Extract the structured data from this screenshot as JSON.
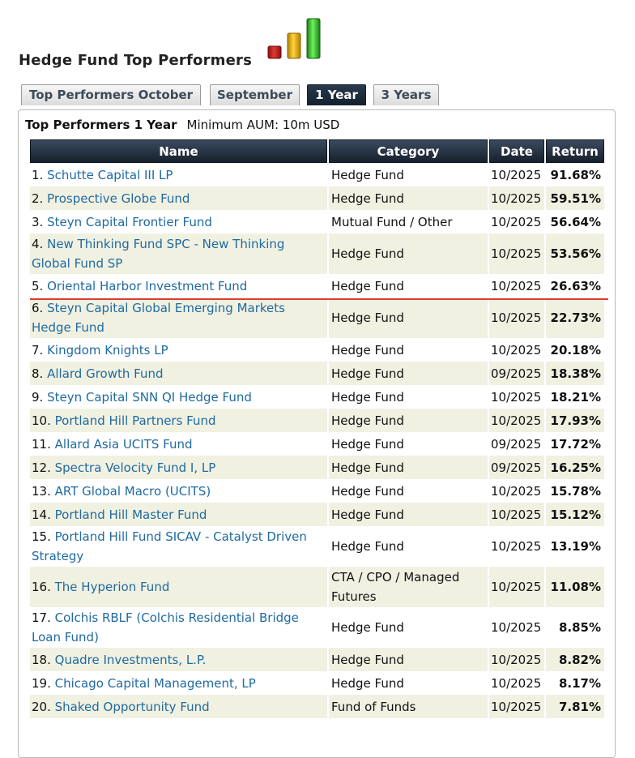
{
  "title": "Hedge Fund Top Performers",
  "tabs": [
    {
      "label": "Top Performers October",
      "active": false
    },
    {
      "label": "September",
      "active": false
    },
    {
      "label": "1 Year",
      "active": true
    },
    {
      "label": "3 Years",
      "active": false
    }
  ],
  "caption": {
    "heading": "Top Performers 1 Year",
    "aum": "Minimum AUM: 10m USD"
  },
  "table": {
    "headers": {
      "name": "Name",
      "category": "Category",
      "date": "Date",
      "return": "Return"
    },
    "rows": [
      {
        "rank": "1.",
        "name": "Schutte Capital III LP",
        "category": "Hedge Fund",
        "date": "10/2025",
        "ret": "91.68%"
      },
      {
        "rank": "2.",
        "name": "Prospective Globe Fund",
        "category": "Hedge Fund",
        "date": "10/2025",
        "ret": "59.51%"
      },
      {
        "rank": "3.",
        "name": "Steyn Capital Frontier Fund",
        "category": "Mutual Fund / Other",
        "date": "10/2025",
        "ret": "56.64%"
      },
      {
        "rank": "4.",
        "name": "New Thinking Fund SPC - New Thinking Global Fund SP",
        "category": "Hedge Fund",
        "date": "10/2025",
        "ret": "53.56%"
      },
      {
        "rank": "5.",
        "name": "Oriental Harbor Investment Fund",
        "category": "Hedge Fund",
        "date": "10/2025",
        "ret": "26.63%"
      },
      {
        "rank": "6.",
        "name": "Steyn Capital Global Emerging Markets Hedge Fund",
        "category": "Hedge Fund",
        "date": "10/2025",
        "ret": "22.73%"
      },
      {
        "rank": "7.",
        "name": "Kingdom Knights LP",
        "category": "Hedge Fund",
        "date": "10/2025",
        "ret": "20.18%"
      },
      {
        "rank": "8.",
        "name": "Allard Growth Fund",
        "category": "Hedge Fund",
        "date": "09/2025",
        "ret": "18.38%"
      },
      {
        "rank": "9.",
        "name": "Steyn Capital SNN QI Hedge Fund",
        "category": "Hedge Fund",
        "date": "10/2025",
        "ret": "18.21%"
      },
      {
        "rank": "10.",
        "name": "Portland Hill Partners Fund",
        "category": "Hedge Fund",
        "date": "10/2025",
        "ret": "17.93%"
      },
      {
        "rank": "11.",
        "name": "Allard Asia UCITS Fund",
        "category": "Hedge Fund",
        "date": "09/2025",
        "ret": "17.72%"
      },
      {
        "rank": "12.",
        "name": "Spectra Velocity Fund I, LP",
        "category": "Hedge Fund",
        "date": "09/2025",
        "ret": "16.25%"
      },
      {
        "rank": "13.",
        "name": "ART Global Macro (UCITS)",
        "category": "Hedge Fund",
        "date": "10/2025",
        "ret": "15.78%"
      },
      {
        "rank": "14.",
        "name": "Portland Hill Master Fund",
        "category": "Hedge Fund",
        "date": "10/2025",
        "ret": "15.12%"
      },
      {
        "rank": "15.",
        "name": "Portland Hill Fund SICAV - Catalyst Driven Strategy",
        "category": "Hedge Fund",
        "date": "10/2025",
        "ret": "13.19%"
      },
      {
        "rank": "16.",
        "name": "The Hyperion Fund",
        "category": "CTA / CPO / Managed Futures",
        "date": "10/2025",
        "ret": "11.08%"
      },
      {
        "rank": "17.",
        "name": "Colchis RBLF (Colchis Residential Bridge Loan Fund)",
        "category": "Hedge Fund",
        "date": "10/2025",
        "ret": "8.85%"
      },
      {
        "rank": "18.",
        "name": "Quadre Investments, L.P.",
        "category": "Hedge Fund",
        "date": "10/2025",
        "ret": "8.82%"
      },
      {
        "rank": "19.",
        "name": "Chicago Capital Management, LP",
        "category": "Hedge Fund",
        "date": "10/2025",
        "ret": "8.17%"
      },
      {
        "rank": "20.",
        "name": "Shaked Opportunity Fund",
        "category": "Fund of Funds",
        "date": "10/2025",
        "ret": "7.81%"
      }
    ]
  },
  "logo": {
    "icon": "bar-chart-icon",
    "colors": [
      "#c0171c",
      "#e6b00e",
      "#2eb82a"
    ]
  },
  "colors": {
    "link": "#1f6aa0",
    "header": "#1f2b3a",
    "stripe": "#f1f1e2",
    "highlight_line": "#e23b30"
  }
}
